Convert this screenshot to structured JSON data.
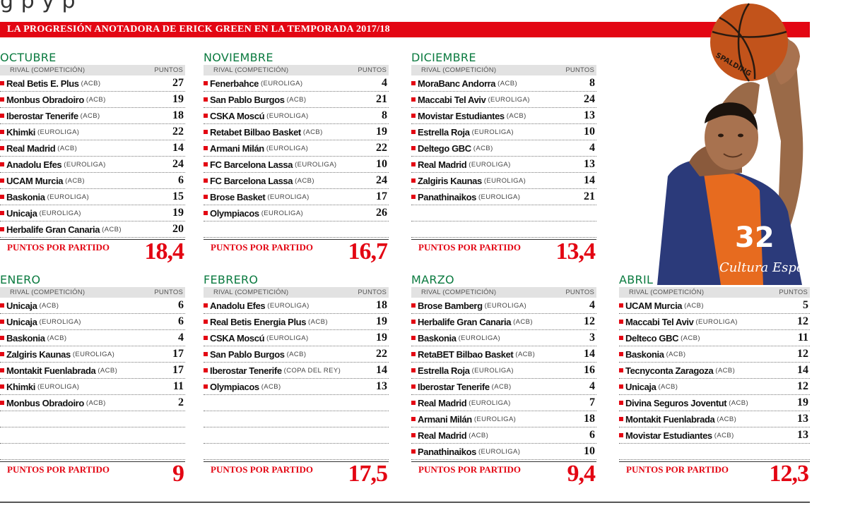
{
  "header": {
    "top_text": "g                                                         p          y                    p",
    "banner_title": "LA PROGRESIÓN ANOTADORA DE ERICK GREEN EN LA TEMPORADA 2017/18"
  },
  "col_rival": "RIVAL (COMPETICIÓN)",
  "col_points": "PUNTOS",
  "summary_label": "PUNTOS POR PARTIDO",
  "colors": {
    "accent": "#e30613",
    "month": "#0a7a3f"
  },
  "months": [
    {
      "name": "OCTUBRE",
      "average": "18,4",
      "games": [
        {
          "team": "Real Betis E. Plus",
          "comp": "(ACB)",
          "points": "27"
        },
        {
          "team": "Monbus Obradoiro",
          "comp": "(ACB)",
          "points": "19"
        },
        {
          "team": "Iberostar Tenerife",
          "comp": "(ACB)",
          "points": "18"
        },
        {
          "team": "Khimki",
          "comp": "(EUROLIGA)",
          "points": "22"
        },
        {
          "team": "Real Madrid",
          "comp": "(ACB)",
          "points": "14"
        },
        {
          "team": "Anadolu Efes",
          "comp": "(EUROLIGA)",
          "points": "24"
        },
        {
          "team": "UCAM Murcia",
          "comp": "(ACB)",
          "points": "6"
        },
        {
          "team": "Baskonia",
          "comp": "(EUROLIGA)",
          "points": "15"
        },
        {
          "team": "Unicaja",
          "comp": "(EUROLIGA)",
          "points": "19"
        },
        {
          "team": "Herbalife Gran Canaria",
          "comp": "(ACB)",
          "points": "20"
        }
      ]
    },
    {
      "name": "NOVIEMBRE",
      "average": "16,7",
      "games": [
        {
          "team": "Fenerbahce",
          "comp": "(EUROLIGA)",
          "points": "4"
        },
        {
          "team": "San Pablo Burgos",
          "comp": "(ACB)",
          "points": "21"
        },
        {
          "team": "CSKA Moscú",
          "comp": "(EUROLIGA)",
          "points": "8"
        },
        {
          "team": "Retabet Bilbao Basket",
          "comp": "(ACB)",
          "points": "19"
        },
        {
          "team": "Armani Milán",
          "comp": "(EUROLIGA)",
          "points": "22"
        },
        {
          "team": "FC Barcelona Lassa",
          "comp": "(EUROLIGA)",
          "points": "10"
        },
        {
          "team": "FC Barcelona Lassa",
          "comp": "(ACB)",
          "points": "24"
        },
        {
          "team": "Brose Basket",
          "comp": "(EUROLIGA)",
          "points": "17"
        },
        {
          "team": "Olympiacos",
          "comp": "(EUROLIGA)",
          "points": "26"
        }
      ]
    },
    {
      "name": "DICIEMBRE",
      "average": "13,4",
      "games": [
        {
          "team": "MoraBanc Andorra",
          "comp": "(ACB)",
          "points": "8"
        },
        {
          "team": "Maccabi Tel Aviv",
          "comp": "(EUROLIGA)",
          "points": "24"
        },
        {
          "team": "Movistar Estudiantes",
          "comp": "(ACB)",
          "points": "13"
        },
        {
          "team": "Estrella Roja",
          "comp": "(EUROLIGA)",
          "points": "10"
        },
        {
          "team": "Deltego GBC",
          "comp": "(ACB)",
          "points": "4"
        },
        {
          "team": "Real Madrid",
          "comp": "(EUROLIGA)",
          "points": "13"
        },
        {
          "team": "Zalgiris Kaunas",
          "comp": "(EUROLIGA)",
          "points": "14"
        },
        {
          "team": "Panathinaikos",
          "comp": "(EUROLIGA)",
          "points": "21"
        }
      ]
    },
    {
      "name": "ENERO",
      "average": "9",
      "games": [
        {
          "team": "Unicaja",
          "comp": "(ACB)",
          "points": "6"
        },
        {
          "team": "Unicaja",
          "comp": "(EUROLIGA)",
          "points": "6"
        },
        {
          "team": "Baskonia",
          "comp": "(ACB)",
          "points": "4"
        },
        {
          "team": "Zalgiris Kaunas",
          "comp": "(EUROLIGA)",
          "points": "17"
        },
        {
          "team": "Montakit Fuenlabrada",
          "comp": "(ACB)",
          "points": "17"
        },
        {
          "team": "Khimki",
          "comp": "(EUROLIGA)",
          "points": "11"
        },
        {
          "team": "Monbus Obradoiro",
          "comp": "(ACB)",
          "points": "2"
        }
      ]
    },
    {
      "name": "FEBRERO",
      "average": "17,5",
      "games": [
        {
          "team": "Anadolu Efes",
          "comp": "(EUROLIGA)",
          "points": "18"
        },
        {
          "team": "Real Betis Energia Plus",
          "comp": "(ACB)",
          "points": "19"
        },
        {
          "team": "CSKA Moscú",
          "comp": "(EUROLIGA)",
          "points": "19"
        },
        {
          "team": "San Pablo Burgos",
          "comp": "(ACB)",
          "points": "22"
        },
        {
          "team": "Iberostar Tenerife",
          "comp": "(COPA DEL REY)",
          "points": "14"
        },
        {
          "team": "Olympiacos",
          "comp": "(ACB)",
          "points": "13"
        }
      ]
    },
    {
      "name": "MARZO",
      "average": "9,4",
      "games": [
        {
          "team": "Brose Bamberg",
          "comp": "(EUROLIGA)",
          "points": "4"
        },
        {
          "team": "Herbalife Gran Canaria",
          "comp": "(ACB)",
          "points": "12"
        },
        {
          "team": "Baskonia",
          "comp": "(EUROLIGA)",
          "points": "3"
        },
        {
          "team": "RetaBET Bilbao Basket",
          "comp": "(ACB)",
          "points": "14"
        },
        {
          "team": "Estrella Roja",
          "comp": "(EUROLIGA)",
          "points": "16"
        },
        {
          "team": "Iberostar Tenerife",
          "comp": "(ACB)",
          "points": "4"
        },
        {
          "team": "Real Madrid",
          "comp": "(EUROLIGA)",
          "points": "7"
        },
        {
          "team": "Armani Milán",
          "comp": "(EUROLIGA)",
          "points": "18"
        },
        {
          "team": "Real Madrid",
          "comp": "(ACB)",
          "points": "6"
        },
        {
          "team": "Panathinaikos",
          "comp": "(EUROLIGA)",
          "points": "10"
        }
      ]
    },
    {
      "name": "ABRIL",
      "average": "12,3",
      "games": [
        {
          "team": "UCAM Murcia",
          "comp": "(ACB)",
          "points": "5"
        },
        {
          "team": "Maccabi Tel Aviv",
          "comp": "(EUROLIGA)",
          "points": "12"
        },
        {
          "team": "Delteco GBC",
          "comp": "(ACB)",
          "points": "11"
        },
        {
          "team": "Baskonia",
          "comp": "(ACB)",
          "points": "12"
        },
        {
          "team": "Tecnyconta Zaragoza",
          "comp": "(ACB)",
          "points": "14"
        },
        {
          "team": "Unicaja",
          "comp": "(ACB)",
          "points": "12"
        },
        {
          "team": "Divina Seguros Joventut",
          "comp": "(ACB)",
          "points": "19"
        },
        {
          "team": "Montakit Fuenlabrada",
          "comp": "(ACB)",
          "points": "13"
        },
        {
          "team": "Movistar Estudiantes",
          "comp": "(ACB)",
          "points": "13"
        }
      ]
    }
  ],
  "photo": {
    "jersey_number": "32",
    "jersey_text": "Cultura Esport",
    "ball_brand": "SPALDING"
  }
}
